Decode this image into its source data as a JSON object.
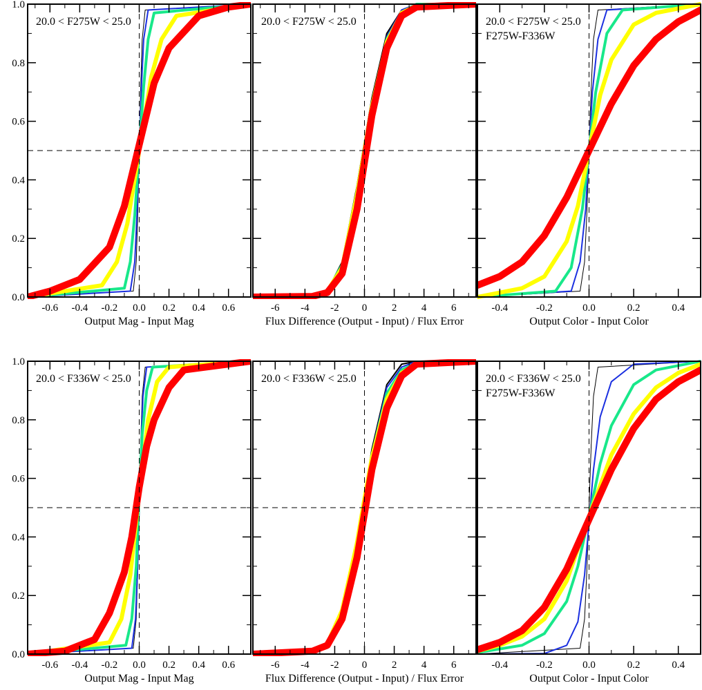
{
  "colors": {
    "black": "#000000",
    "blue": "#1a2fe0",
    "green": "#18e88a",
    "yellow": "#ffff00",
    "red": "#ff0000"
  },
  "chart_data": [
    {
      "type": "line",
      "annotation": [
        "20.0 < F275W < 25.0"
      ],
      "xlabel": "Output Mag - Input Mag",
      "xlim": [
        -0.75,
        0.75
      ],
      "ylim": [
        0,
        1
      ],
      "x_ticks": [
        "-0.6",
        "-0.4",
        "-0.2",
        "0.0",
        "0.2",
        "0.4",
        "0.6"
      ],
      "y_ticks": [
        "0.0",
        "0.2",
        "0.4",
        "0.6",
        "0.8",
        "1.0"
      ],
      "ref_x": 0,
      "ref_y": 0.5,
      "series": [
        {
          "color": "black",
          "width": 1,
          "x": [
            -0.75,
            -0.04,
            -0.02,
            -0.01,
            0.0,
            0.01,
            0.02,
            0.04,
            0.75
          ],
          "y": [
            0.0,
            0.02,
            0.12,
            0.28,
            0.5,
            0.72,
            0.88,
            0.98,
            1.0
          ]
        },
        {
          "color": "blue",
          "width": 2,
          "x": [
            -0.75,
            -0.06,
            -0.03,
            -0.015,
            0.0,
            0.015,
            0.03,
            0.06,
            0.75
          ],
          "y": [
            0.0,
            0.02,
            0.12,
            0.28,
            0.5,
            0.72,
            0.88,
            0.98,
            1.0
          ]
        },
        {
          "color": "green",
          "width": 4,
          "x": [
            -0.75,
            -0.1,
            -0.06,
            -0.03,
            0.0,
            0.03,
            0.06,
            0.1,
            0.75
          ],
          "y": [
            0.0,
            0.03,
            0.12,
            0.28,
            0.5,
            0.72,
            0.88,
            0.97,
            1.0
          ]
        },
        {
          "color": "yellow",
          "width": 6,
          "x": [
            -0.75,
            -0.25,
            -0.15,
            -0.08,
            0.0,
            0.08,
            0.15,
            0.25,
            0.75
          ],
          "y": [
            0.0,
            0.04,
            0.12,
            0.25,
            0.5,
            0.75,
            0.88,
            0.96,
            1.0
          ]
        },
        {
          "color": "red",
          "width": 10,
          "x": [
            -0.75,
            -0.6,
            -0.4,
            -0.2,
            -0.1,
            0.0,
            0.1,
            0.2,
            0.4,
            0.6,
            0.75
          ],
          "y": [
            0.0,
            0.02,
            0.06,
            0.17,
            0.31,
            0.52,
            0.73,
            0.85,
            0.96,
            0.99,
            1.0
          ]
        }
      ]
    },
    {
      "type": "line",
      "annotation": [
        "20.0 < F275W < 25.0"
      ],
      "xlabel": "Flux Difference (Output - Input) / Flux Error",
      "xlim": [
        -7.5,
        7.5
      ],
      "ylim": [
        0,
        1
      ],
      "x_ticks": [
        "-6",
        "-4",
        "-2",
        "0",
        "2",
        "4",
        "6"
      ],
      "y_ticks": [
        "0.0",
        "0.2",
        "0.4",
        "0.6",
        "0.8",
        "1.0"
      ],
      "ref_x": 0,
      "ref_y": 0.5,
      "series": [
        {
          "color": "black",
          "width": 2,
          "x": [
            -7.5,
            -3.5,
            -2.5,
            -1.5,
            -0.5,
            0.0,
            0.5,
            1.5,
            2.5,
            3.5,
            7.5
          ],
          "y": [
            0.0,
            0.003,
            0.02,
            0.12,
            0.38,
            0.53,
            0.68,
            0.9,
            0.98,
            1.0,
            1.0
          ]
        },
        {
          "color": "blue",
          "width": 2,
          "x": [
            -7.5,
            -3.5,
            -2.5,
            -1.5,
            -0.5,
            0.0,
            0.5,
            1.5,
            2.5,
            3.5,
            7.5
          ],
          "y": [
            0.0,
            0.003,
            0.02,
            0.11,
            0.37,
            0.52,
            0.67,
            0.89,
            0.98,
            1.0,
            1.0
          ]
        },
        {
          "color": "green",
          "width": 4,
          "x": [
            -7.5,
            -3.5,
            -2.5,
            -1.5,
            -0.5,
            0.0,
            0.5,
            1.5,
            2.5,
            3.5,
            7.5
          ],
          "y": [
            0.0,
            0.003,
            0.02,
            0.11,
            0.36,
            0.51,
            0.66,
            0.88,
            0.97,
            1.0,
            1.0
          ]
        },
        {
          "color": "yellow",
          "width": 6,
          "x": [
            -7.5,
            -3.5,
            -2.5,
            -1.5,
            -0.5,
            0.0,
            0.5,
            1.5,
            2.5,
            3.5,
            7.5
          ],
          "y": [
            0.0,
            0.003,
            0.02,
            0.1,
            0.35,
            0.5,
            0.65,
            0.87,
            0.97,
            0.995,
            1.0
          ]
        },
        {
          "color": "red",
          "width": 10,
          "x": [
            -7.5,
            -3.5,
            -2.5,
            -1.5,
            -0.5,
            0.0,
            0.5,
            1.5,
            2.5,
            3.5,
            7.5
          ],
          "y": [
            0.0,
            0.002,
            0.015,
            0.08,
            0.3,
            0.46,
            0.62,
            0.85,
            0.96,
            0.99,
            1.0
          ]
        }
      ]
    },
    {
      "type": "line",
      "annotation": [
        "20.0 < F275W < 25.0",
        "F275W-F336W"
      ],
      "xlabel": "Output Color - Input Color",
      "xlim": [
        -0.5,
        0.5
      ],
      "ylim": [
        0,
        1
      ],
      "x_ticks": [
        "-0.4",
        "-0.2",
        "0.0",
        "0.2",
        "0.4"
      ],
      "y_ticks": [
        "0.0",
        "0.2",
        "0.4",
        "0.6",
        "0.8",
        "1.0"
      ],
      "ref_x": 0,
      "ref_y": 0.5,
      "series": [
        {
          "color": "black",
          "width": 1,
          "x": [
            -0.5,
            -0.04,
            -0.02,
            -0.01,
            0.0,
            0.01,
            0.02,
            0.04,
            0.5
          ],
          "y": [
            0.0,
            0.02,
            0.12,
            0.28,
            0.5,
            0.72,
            0.88,
            0.98,
            1.0
          ]
        },
        {
          "color": "blue",
          "width": 2,
          "x": [
            -0.5,
            -0.08,
            -0.04,
            -0.015,
            0.0,
            0.015,
            0.04,
            0.08,
            0.5
          ],
          "y": [
            0.0,
            0.02,
            0.12,
            0.3,
            0.5,
            0.7,
            0.88,
            0.98,
            1.0
          ]
        },
        {
          "color": "green",
          "width": 4,
          "x": [
            -0.5,
            -0.15,
            -0.08,
            -0.03,
            0.0,
            0.03,
            0.08,
            0.15,
            0.5
          ],
          "y": [
            0.0,
            0.02,
            0.1,
            0.3,
            0.5,
            0.7,
            0.9,
            0.98,
            1.0
          ]
        },
        {
          "color": "yellow",
          "width": 6,
          "x": [
            -0.5,
            -0.3,
            -0.2,
            -0.1,
            -0.05,
            0.0,
            0.05,
            0.1,
            0.2,
            0.3,
            0.5
          ],
          "y": [
            0.0,
            0.03,
            0.07,
            0.19,
            0.31,
            0.5,
            0.69,
            0.81,
            0.93,
            0.97,
            1.0
          ]
        },
        {
          "color": "red",
          "width": 10,
          "x": [
            -0.5,
            -0.4,
            -0.3,
            -0.2,
            -0.1,
            0.0,
            0.1,
            0.2,
            0.3,
            0.4,
            0.5
          ],
          "y": [
            0.04,
            0.07,
            0.12,
            0.21,
            0.34,
            0.5,
            0.66,
            0.79,
            0.88,
            0.94,
            0.98
          ]
        }
      ]
    },
    {
      "type": "line",
      "annotation": [
        "20.0 < F336W < 25.0"
      ],
      "xlabel": "Output Mag - Input Mag",
      "xlim": [
        -0.75,
        0.75
      ],
      "ylim": [
        0,
        1
      ],
      "x_ticks": [
        "-0.6",
        "-0.4",
        "-0.2",
        "0.0",
        "0.2",
        "0.4",
        "0.6"
      ],
      "y_ticks": [
        "0.0",
        "0.2",
        "0.4",
        "0.6",
        "0.8",
        "1.0"
      ],
      "ref_x": 0,
      "ref_y": 0.5,
      "series": [
        {
          "color": "black",
          "width": 1,
          "x": [
            -0.75,
            -0.04,
            -0.02,
            -0.01,
            0.0,
            0.01,
            0.02,
            0.04,
            0.75
          ],
          "y": [
            0.0,
            0.02,
            0.12,
            0.28,
            0.5,
            0.72,
            0.88,
            0.98,
            1.0
          ]
        },
        {
          "color": "blue",
          "width": 2,
          "x": [
            -0.75,
            -0.05,
            -0.025,
            -0.012,
            0.0,
            0.012,
            0.025,
            0.05,
            0.75
          ],
          "y": [
            0.0,
            0.02,
            0.12,
            0.28,
            0.5,
            0.72,
            0.88,
            0.98,
            1.0
          ]
        },
        {
          "color": "green",
          "width": 4,
          "x": [
            -0.75,
            -0.09,
            -0.05,
            -0.02,
            0.0,
            0.02,
            0.05,
            0.09,
            0.75
          ],
          "y": [
            0.0,
            0.03,
            0.12,
            0.3,
            0.55,
            0.75,
            0.9,
            0.98,
            1.0
          ]
        },
        {
          "color": "yellow",
          "width": 6,
          "x": [
            -0.75,
            -0.2,
            -0.12,
            -0.06,
            0.0,
            0.06,
            0.12,
            0.2,
            0.75
          ],
          "y": [
            0.0,
            0.04,
            0.12,
            0.27,
            0.55,
            0.8,
            0.93,
            0.98,
            1.0
          ]
        },
        {
          "color": "red",
          "width": 10,
          "x": [
            -0.75,
            -0.5,
            -0.3,
            -0.2,
            -0.1,
            -0.05,
            0.0,
            0.05,
            0.1,
            0.2,
            0.3,
            0.75
          ],
          "y": [
            0.0,
            0.01,
            0.05,
            0.14,
            0.28,
            0.4,
            0.57,
            0.71,
            0.8,
            0.91,
            0.97,
            1.0
          ]
        }
      ]
    },
    {
      "type": "line",
      "annotation": [
        "20.0 < F336W < 25.0"
      ],
      "xlabel": "Flux Difference (Output - Input) / Flux Error",
      "xlim": [
        -7.5,
        7.5
      ],
      "ylim": [
        0,
        1
      ],
      "x_ticks": [
        "-6",
        "-4",
        "-2",
        "0",
        "2",
        "4",
        "6"
      ],
      "y_ticks": [
        "0.0",
        "0.2",
        "0.4",
        "0.6",
        "0.8",
        "1.0"
      ],
      "ref_x": 0,
      "ref_y": 0.5,
      "series": [
        {
          "color": "black",
          "width": 2,
          "x": [
            -7.5,
            -3.5,
            -2.5,
            -1.5,
            -0.5,
            0.0,
            0.5,
            1.5,
            2.5,
            3.5,
            7.5
          ],
          "y": [
            0.0,
            0.003,
            0.02,
            0.12,
            0.38,
            0.54,
            0.7,
            0.92,
            0.99,
            1.0,
            1.0
          ]
        },
        {
          "color": "blue",
          "width": 2,
          "x": [
            -7.5,
            -3.5,
            -2.5,
            -1.5,
            -0.5,
            0.0,
            0.5,
            1.5,
            2.5,
            3.5,
            7.5
          ],
          "y": [
            0.0,
            0.004,
            0.025,
            0.13,
            0.39,
            0.54,
            0.69,
            0.91,
            0.98,
            1.0,
            1.0
          ]
        },
        {
          "color": "green",
          "width": 4,
          "x": [
            -7.5,
            -3.5,
            -2.5,
            -1.5,
            -0.5,
            0.0,
            0.5,
            1.5,
            2.5,
            3.5,
            7.5
          ],
          "y": [
            0.0,
            0.005,
            0.03,
            0.14,
            0.39,
            0.54,
            0.68,
            0.89,
            0.97,
            0.995,
            1.0
          ]
        },
        {
          "color": "yellow",
          "width": 6,
          "x": [
            -7.5,
            -3.5,
            -2.5,
            -1.5,
            -0.5,
            0.0,
            0.5,
            1.5,
            2.5,
            3.5,
            7.5
          ],
          "y": [
            0.0,
            0.007,
            0.035,
            0.15,
            0.38,
            0.53,
            0.67,
            0.87,
            0.96,
            0.99,
            1.0
          ]
        },
        {
          "color": "red",
          "width": 10,
          "x": [
            -7.5,
            -3.5,
            -2.5,
            -1.5,
            -0.5,
            0.0,
            0.5,
            1.5,
            2.5,
            3.5,
            7.5
          ],
          "y": [
            0.0,
            0.01,
            0.03,
            0.12,
            0.33,
            0.48,
            0.63,
            0.84,
            0.95,
            0.99,
            1.0
          ]
        }
      ]
    },
    {
      "type": "line",
      "annotation": [
        "20.0 < F336W < 25.0",
        "F275W-F336W"
      ],
      "xlabel": "Output Color - Input Color",
      "xlim": [
        -0.5,
        0.5
      ],
      "ylim": [
        0,
        1
      ],
      "x_ticks": [
        "-0.4",
        "-0.2",
        "0.0",
        "0.2",
        "0.4"
      ],
      "y_ticks": [
        "0.0",
        "0.2",
        "0.4",
        "0.6",
        "0.8",
        "1.0"
      ],
      "ref_x": 0,
      "ref_y": 0.5,
      "series": [
        {
          "color": "black",
          "width": 1,
          "x": [
            -0.5,
            -0.04,
            -0.02,
            -0.01,
            0.0,
            0.01,
            0.02,
            0.04,
            0.5
          ],
          "y": [
            0.0,
            0.02,
            0.12,
            0.28,
            0.5,
            0.72,
            0.88,
            0.98,
            1.0
          ]
        },
        {
          "color": "blue",
          "width": 2,
          "x": [
            -0.5,
            -0.2,
            -0.1,
            -0.05,
            -0.02,
            0.0,
            0.02,
            0.05,
            0.1,
            0.2,
            0.5
          ],
          "y": [
            0.0,
            0.002,
            0.03,
            0.11,
            0.27,
            0.45,
            0.63,
            0.81,
            0.93,
            0.99,
            1.0
          ]
        },
        {
          "color": "green",
          "width": 4,
          "x": [
            -0.5,
            -0.3,
            -0.2,
            -0.1,
            -0.05,
            0.0,
            0.05,
            0.1,
            0.2,
            0.3,
            0.5
          ],
          "y": [
            0.005,
            0.03,
            0.07,
            0.18,
            0.3,
            0.47,
            0.65,
            0.78,
            0.92,
            0.97,
            1.0
          ]
        },
        {
          "color": "yellow",
          "width": 6,
          "x": [
            -0.5,
            -0.4,
            -0.3,
            -0.2,
            -0.1,
            0.0,
            0.1,
            0.2,
            0.3,
            0.4,
            0.5
          ],
          "y": [
            0.01,
            0.03,
            0.06,
            0.12,
            0.25,
            0.47,
            0.68,
            0.82,
            0.91,
            0.96,
            0.99
          ]
        },
        {
          "color": "red",
          "width": 10,
          "x": [
            -0.5,
            -0.4,
            -0.3,
            -0.2,
            -0.1,
            0.0,
            0.1,
            0.2,
            0.3,
            0.4,
            0.5
          ],
          "y": [
            0.015,
            0.04,
            0.08,
            0.16,
            0.29,
            0.46,
            0.63,
            0.77,
            0.87,
            0.93,
            0.97
          ]
        }
      ]
    }
  ]
}
